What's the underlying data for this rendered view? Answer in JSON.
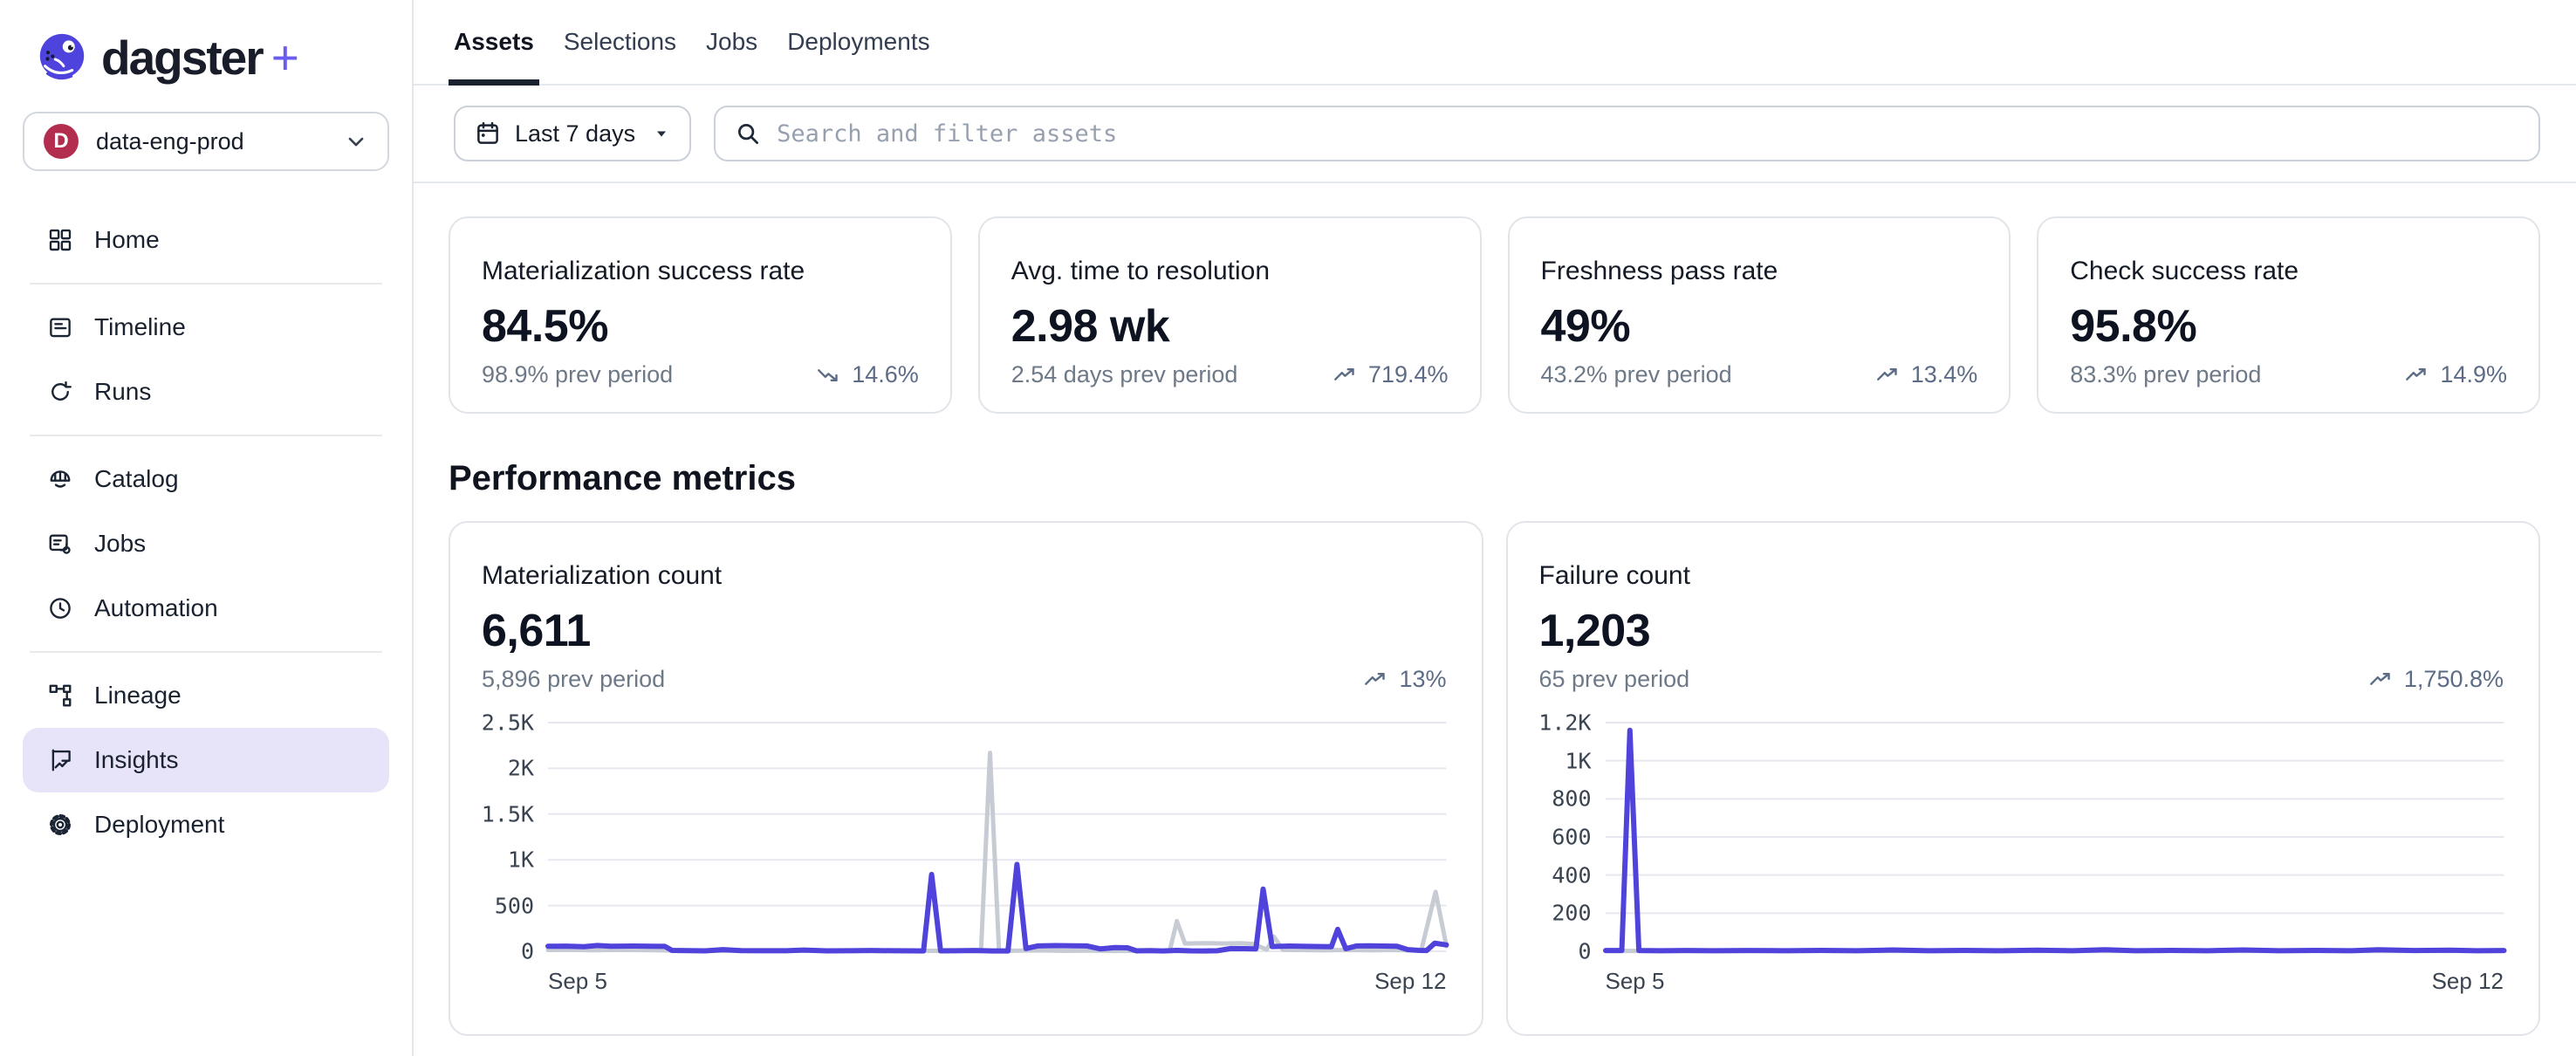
{
  "brand": {
    "name": "dagster",
    "plus": "+"
  },
  "workspace": {
    "label": "data-eng-prod",
    "avatar_letter": "D",
    "avatar_color": "#B32D4E"
  },
  "top_nav": {
    "tabs": [
      {
        "label": "Assets",
        "active": true
      },
      {
        "label": "Selections",
        "active": false
      },
      {
        "label": "Jobs",
        "active": false
      },
      {
        "label": "Deployments",
        "active": false
      }
    ]
  },
  "sidebar": {
    "items": [
      {
        "label": "Home",
        "icon": "home-icon",
        "active": false,
        "divider_after": true
      },
      {
        "label": "Timeline",
        "icon": "timeline-icon",
        "active": false,
        "divider_after": false
      },
      {
        "label": "Runs",
        "icon": "runs-icon",
        "active": false,
        "divider_after": true
      },
      {
        "label": "Catalog",
        "icon": "catalog-icon",
        "active": false,
        "divider_after": false
      },
      {
        "label": "Jobs",
        "icon": "jobs-icon",
        "active": false,
        "divider_after": false
      },
      {
        "label": "Automation",
        "icon": "automation-icon",
        "active": false,
        "divider_after": true
      },
      {
        "label": "Lineage",
        "icon": "lineage-icon",
        "active": false,
        "divider_after": false
      },
      {
        "label": "Insights",
        "icon": "insights-icon",
        "active": true,
        "divider_after": false
      },
      {
        "label": "Deployment",
        "icon": "deployment-icon",
        "active": false,
        "divider_after": false
      }
    ]
  },
  "toolbar": {
    "date_range_label": "Last 7 days",
    "search_placeholder": "Search and filter assets"
  },
  "metric_cards": [
    {
      "title": "Materialization success rate",
      "value": "84.5%",
      "prev": "98.9% prev period",
      "delta": "14.6%",
      "trend": "down"
    },
    {
      "title": "Avg. time to resolution",
      "value": "2.98 wk",
      "prev": "2.54 days prev period",
      "delta": "719.4%",
      "trend": "up"
    },
    {
      "title": "Freshness pass rate",
      "value": "49%",
      "prev": "43.2% prev period",
      "delta": "13.4%",
      "trend": "up"
    },
    {
      "title": "Check success rate",
      "value": "95.8%",
      "prev": "83.3% prev period",
      "delta": "14.9%",
      "trend": "up"
    }
  ],
  "section": {
    "title": "Performance metrics"
  },
  "chart_data": [
    {
      "type": "line",
      "title": "Materialization count",
      "value": "6,611",
      "prev": "5,896 prev period",
      "delta": "13%",
      "trend": "up",
      "x_labels": [
        "Sep 5",
        "Sep 12"
      ],
      "ylim": [
        0,
        2500
      ],
      "grid": true,
      "legend": "none",
      "y_ticks": [
        {
          "v": 0,
          "label": "0"
        },
        {
          "v": 500,
          "label": "500"
        },
        {
          "v": 1000,
          "label": "1K"
        },
        {
          "v": 1500,
          "label": "1.5K"
        },
        {
          "v": 2000,
          "label": "2K"
        },
        {
          "v": 2500,
          "label": "2.5K"
        }
      ],
      "series": [
        {
          "name": "prev period",
          "color": "#C7CBD3",
          "width": 5,
          "points": [
            [
              0,
              14
            ],
            [
              0.025,
              17
            ],
            [
              0.05,
              11
            ],
            [
              0.075,
              15
            ],
            [
              0.1,
              13
            ],
            [
              0.125,
              11
            ],
            [
              0.145,
              4
            ],
            [
              0.17,
              7
            ],
            [
              0.195,
              5
            ],
            [
              0.22,
              9
            ],
            [
              0.25,
              5
            ],
            [
              0.28,
              7
            ],
            [
              0.31,
              4
            ],
            [
              0.34,
              7
            ],
            [
              0.37,
              4
            ],
            [
              0.4,
              7
            ],
            [
              0.43,
              5
            ],
            [
              0.46,
              6
            ],
            [
              0.482,
              4
            ],
            [
              0.492,
              2170
            ],
            [
              0.502,
              4
            ],
            [
              0.525,
              7
            ],
            [
              0.55,
              9
            ],
            [
              0.575,
              5
            ],
            [
              0.6,
              7
            ],
            [
              0.625,
              4
            ],
            [
              0.65,
              5
            ],
            [
              0.675,
              4
            ],
            [
              0.692,
              4
            ],
            [
              0.7,
              330
            ],
            [
              0.709,
              85
            ],
            [
              0.73,
              88
            ],
            [
              0.75,
              85
            ],
            [
              0.77,
              88
            ],
            [
              0.785,
              80
            ],
            [
              0.8,
              18
            ],
            [
              0.808,
              160
            ],
            [
              0.818,
              16
            ],
            [
              0.84,
              13
            ],
            [
              0.865,
              11
            ],
            [
              0.89,
              14
            ],
            [
              0.915,
              11
            ],
            [
              0.94,
              14
            ],
            [
              0.958,
              11
            ],
            [
              0.972,
              10
            ],
            [
              0.988,
              650
            ],
            [
              1,
              58
            ]
          ]
        },
        {
          "name": "current period",
          "color": "#4F43DB",
          "width": 6,
          "points": [
            [
              0,
              55
            ],
            [
              0.02,
              56
            ],
            [
              0.04,
              50
            ],
            [
              0.055,
              63
            ],
            [
              0.07,
              55
            ],
            [
              0.095,
              57
            ],
            [
              0.115,
              55
            ],
            [
              0.13,
              54
            ],
            [
              0.138,
              10
            ],
            [
              0.155,
              7
            ],
            [
              0.175,
              5
            ],
            [
              0.195,
              18
            ],
            [
              0.215,
              7
            ],
            [
              0.24,
              6
            ],
            [
              0.265,
              6
            ],
            [
              0.285,
              13
            ],
            [
              0.31,
              5
            ],
            [
              0.335,
              6
            ],
            [
              0.36,
              8
            ],
            [
              0.385,
              6
            ],
            [
              0.405,
              5
            ],
            [
              0.418,
              4
            ],
            [
              0.427,
              840
            ],
            [
              0.437,
              5
            ],
            [
              0.455,
              6
            ],
            [
              0.475,
              8
            ],
            [
              0.495,
              4
            ],
            [
              0.512,
              3
            ],
            [
              0.522,
              950
            ],
            [
              0.532,
              30
            ],
            [
              0.545,
              58
            ],
            [
              0.565,
              62
            ],
            [
              0.585,
              60
            ],
            [
              0.6,
              58
            ],
            [
              0.615,
              26
            ],
            [
              0.63,
              40
            ],
            [
              0.645,
              38
            ],
            [
              0.655,
              5
            ],
            [
              0.67,
              7
            ],
            [
              0.685,
              3
            ],
            [
              0.7,
              10
            ],
            [
              0.715,
              5
            ],
            [
              0.73,
              4
            ],
            [
              0.745,
              6
            ],
            [
              0.76,
              30
            ],
            [
              0.775,
              28
            ],
            [
              0.788,
              26
            ],
            [
              0.796,
              680
            ],
            [
              0.806,
              52
            ],
            [
              0.825,
              57
            ],
            [
              0.845,
              54
            ],
            [
              0.862,
              52
            ],
            [
              0.872,
              50
            ],
            [
              0.879,
              240
            ],
            [
              0.888,
              28
            ],
            [
              0.9,
              58
            ],
            [
              0.915,
              60
            ],
            [
              0.93,
              57
            ],
            [
              0.945,
              55
            ],
            [
              0.957,
              18
            ],
            [
              0.97,
              10
            ],
            [
              0.978,
              8
            ],
            [
              0.987,
              88
            ],
            [
              1,
              70
            ]
          ]
        }
      ]
    },
    {
      "type": "line",
      "title": "Failure count",
      "value": "1,203",
      "prev": "65 prev period",
      "delta": "1,750.8%",
      "trend": "up",
      "x_labels": [
        "Sep 5",
        "Sep 12"
      ],
      "ylim": [
        0,
        1200
      ],
      "grid": true,
      "legend": "none",
      "y_ticks": [
        {
          "v": 0,
          "label": "0"
        },
        {
          "v": 200,
          "label": "200"
        },
        {
          "v": 400,
          "label": "400"
        },
        {
          "v": 600,
          "label": "600"
        },
        {
          "v": 800,
          "label": "800"
        },
        {
          "v": 1000,
          "label": "1K"
        },
        {
          "v": 1200,
          "label": "1.2K"
        }
      ],
      "series": [
        {
          "name": "prev period",
          "color": "#C7CBD3",
          "width": 5,
          "points": [
            [
              0,
              2
            ],
            [
              0.1,
              2
            ],
            [
              0.2,
              2
            ],
            [
              0.3,
              2
            ],
            [
              0.4,
              2
            ],
            [
              0.5,
              2
            ],
            [
              0.6,
              2
            ],
            [
              0.7,
              2
            ],
            [
              0.8,
              2
            ],
            [
              0.9,
              2
            ],
            [
              1,
              2
            ]
          ]
        },
        {
          "name": "current period",
          "color": "#4F43DB",
          "width": 6,
          "points": [
            [
              0,
              4
            ],
            [
              0.018,
              4
            ],
            [
              0.027,
              1160
            ],
            [
              0.037,
              4
            ],
            [
              0.06,
              3
            ],
            [
              0.09,
              4
            ],
            [
              0.12,
              3
            ],
            [
              0.16,
              4
            ],
            [
              0.2,
              3
            ],
            [
              0.24,
              5
            ],
            [
              0.28,
              3
            ],
            [
              0.32,
              7
            ],
            [
              0.36,
              3
            ],
            [
              0.4,
              5
            ],
            [
              0.44,
              3
            ],
            [
              0.48,
              6
            ],
            [
              0.52,
              3
            ],
            [
              0.555,
              8
            ],
            [
              0.59,
              3
            ],
            [
              0.63,
              5
            ],
            [
              0.67,
              3
            ],
            [
              0.71,
              7
            ],
            [
              0.75,
              3
            ],
            [
              0.79,
              5
            ],
            [
              0.83,
              3
            ],
            [
              0.86,
              8
            ],
            [
              0.9,
              4
            ],
            [
              0.94,
              6
            ],
            [
              0.97,
              3
            ],
            [
              1,
              4
            ]
          ]
        }
      ]
    }
  ],
  "colors": {
    "accent_purple": "#4F43DB",
    "prev_series_gray": "#C7CBD3",
    "sidebar_active_bg": "#E7E4F9",
    "gridline": "#E7E7EF",
    "delta_text": "#5D6C86",
    "logo_purple": "#4F43DD",
    "avatar_crimson": "#B32D4E"
  }
}
